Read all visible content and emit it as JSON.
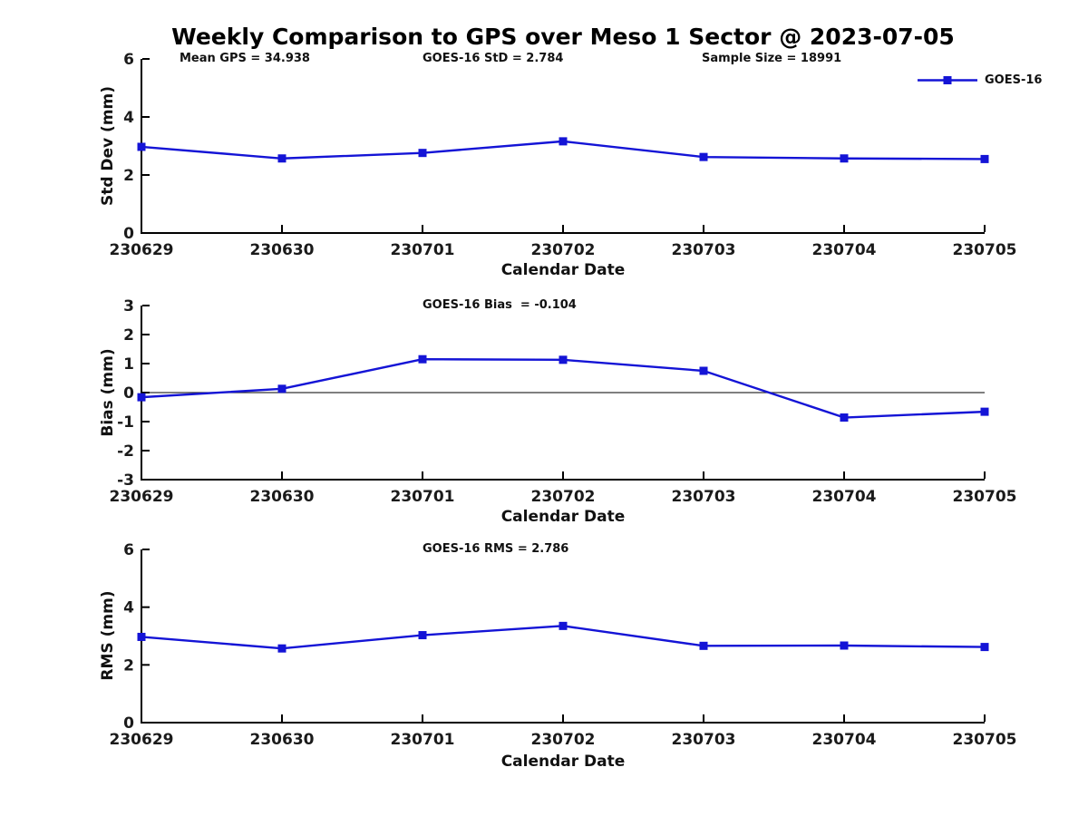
{
  "figure": {
    "title": "Weekly Comparison to GPS over Meso 1 Sector @ 2023-07-05",
    "legend": {
      "label": "GOES-16"
    },
    "colors": {
      "series": "#1414d6",
      "axis": "#000000",
      "zero_line": "#333333"
    }
  },
  "chart_data": [
    {
      "type": "line",
      "id": "std-dev",
      "annotations": [
        {
          "text": "Mean GPS = 34.938"
        },
        {
          "text": "GOES-16 StD = 2.784"
        },
        {
          "text": "Sample Size = 18991"
        }
      ],
      "categories": [
        "230629",
        "230630",
        "230701",
        "230702",
        "230703",
        "230704",
        "230705"
      ],
      "series": [
        {
          "name": "GOES-16",
          "values": [
            2.97,
            2.57,
            2.76,
            3.16,
            2.62,
            2.57,
            2.55
          ]
        }
      ],
      "xlabel": "Calendar Date",
      "ylabel": "Std Dev (mm)",
      "ylim": [
        0,
        6
      ],
      "yticks": [
        0,
        2,
        4,
        6
      ],
      "legend_position": "top-right",
      "grid": false
    },
    {
      "type": "line",
      "id": "bias",
      "annotations": [
        {
          "text": "GOES-16 Bias  = -0.104"
        }
      ],
      "categories": [
        "230629",
        "230630",
        "230701",
        "230702",
        "230703",
        "230704",
        "230705"
      ],
      "series": [
        {
          "name": "GOES-16",
          "values": [
            -0.16,
            0.13,
            1.15,
            1.13,
            0.75,
            -0.86,
            -0.66
          ]
        }
      ],
      "xlabel": "Calendar Date",
      "ylabel": "Bias (mm)",
      "ylim": [
        -3,
        3
      ],
      "yticks": [
        -3,
        -2,
        -1,
        0,
        1,
        2,
        3
      ],
      "zero_line": true,
      "grid": false
    },
    {
      "type": "line",
      "id": "rms",
      "annotations": [
        {
          "text": "GOES-16 RMS = 2.786"
        }
      ],
      "categories": [
        "230629",
        "230630",
        "230701",
        "230702",
        "230703",
        "230704",
        "230705"
      ],
      "series": [
        {
          "name": "GOES-16",
          "values": [
            2.97,
            2.57,
            3.03,
            3.35,
            2.66,
            2.67,
            2.62
          ]
        }
      ],
      "xlabel": "Calendar Date",
      "ylabel": "RMS (mm)",
      "ylim": [
        0,
        6
      ],
      "yticks": [
        0,
        2,
        4,
        6
      ],
      "grid": false
    }
  ]
}
